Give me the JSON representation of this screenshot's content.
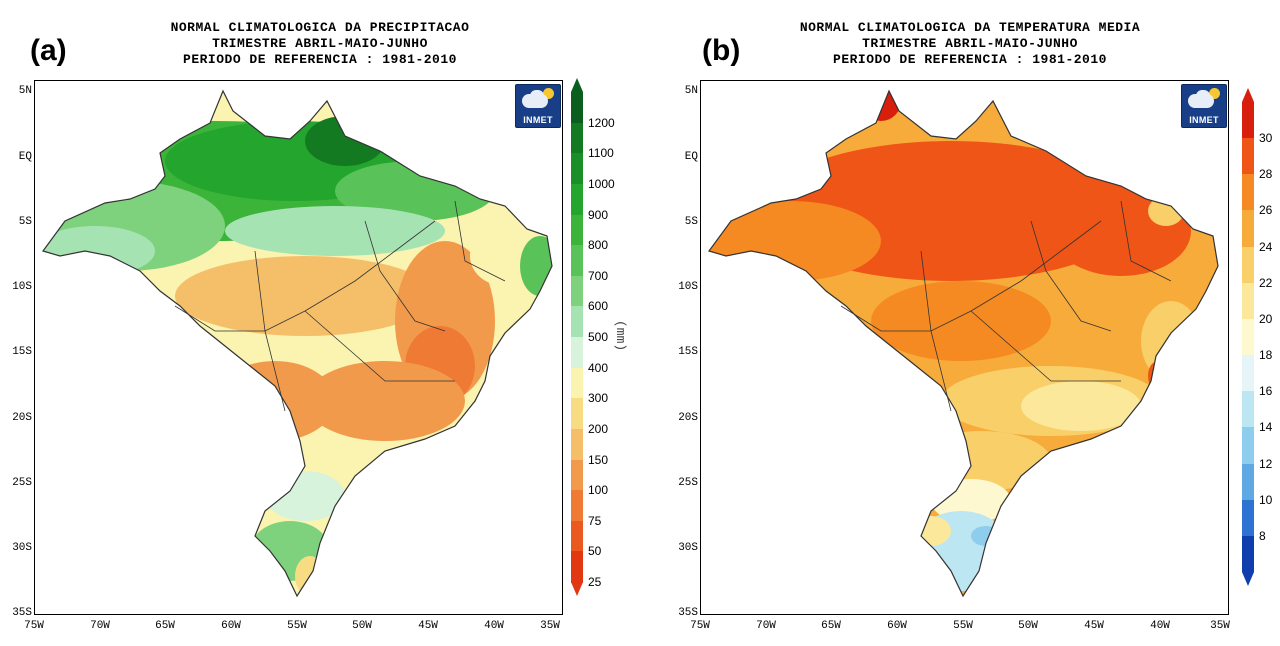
{
  "panels": [
    {
      "letter": "(a)",
      "title": [
        "NORMAL CLIMATOLOGICA DA PRECIPITACAO",
        "TRIMESTRE ABRIL-MAIO-JUNHO",
        "PERIODO DE REFERENCIA : 1981-2010"
      ],
      "unit": "(mm)",
      "logo_text": "INMET",
      "colorbar": {
        "labels": [
          "1200",
          "1100",
          "1000",
          "900",
          "800",
          "700",
          "600",
          "500",
          "400",
          "300",
          "200",
          "150",
          "100",
          "75",
          "50",
          "25"
        ],
        "colors": [
          "#0b5e1e",
          "#137a22",
          "#1a8f27",
          "#23a52e",
          "#3cb43a",
          "#59c35a",
          "#7fd27d",
          "#a6e3b3",
          "#d8f3dc",
          "#fbf3b0",
          "#f8dc84",
          "#f5bf6a",
          "#f29a4c",
          "#ef7a34",
          "#ea5a20",
          "#e23812"
        ]
      }
    },
    {
      "letter": "(b)",
      "title": [
        "NORMAL CLIMATOLOGICA DA TEMPERATURA MEDIA",
        "TRIMESTRE ABRIL-MAIO-JUNHO",
        "PERIODO DE REFERENCIA : 1981-2010"
      ],
      "unit": "",
      "logo_text": "INMET",
      "colorbar": {
        "labels": [
          "30",
          "28",
          "26",
          "24",
          "22",
          "20",
          "18",
          "16",
          "14",
          "12",
          "10",
          "8"
        ],
        "colors": [
          "#d81e0c",
          "#ee5516",
          "#f58a22",
          "#f7ab3a",
          "#f9cf6a",
          "#fbe89a",
          "#fdf8d0",
          "#e6f5f8",
          "#bde6f3",
          "#8fcdee",
          "#5ea9e4",
          "#2d74d2",
          "#0f3fae"
        ]
      }
    }
  ],
  "axes": {
    "lat_labels": [
      "5N",
      "EQ",
      "5S",
      "10S",
      "15S",
      "20S",
      "25S",
      "30S",
      "35S"
    ],
    "lon_labels": [
      "75W",
      "70W",
      "65W",
      "60W",
      "55W",
      "50W",
      "45W",
      "40W",
      "35W"
    ]
  },
  "colors": {
    "border": "#333333"
  }
}
